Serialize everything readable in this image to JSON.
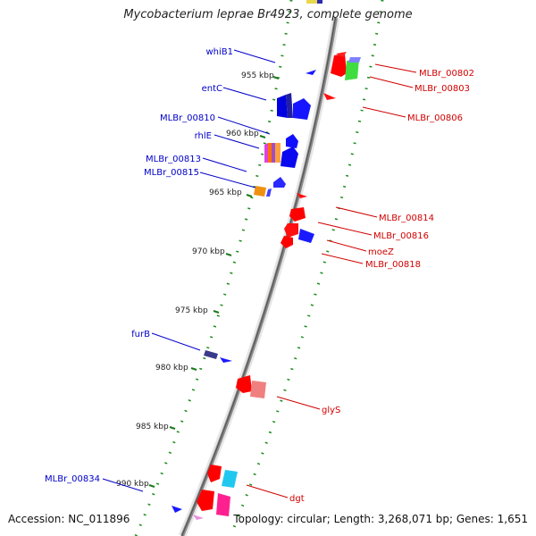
{
  "title": "Mycobacterium leprae Br4923, complete genome",
  "footer": {
    "accession": "Accession: NC_011896",
    "topology": "Topology: circular; Length: 3,268,071 bp; Genes: 1,651"
  },
  "ticks": [
    "955 kbp",
    "960 kbp",
    "965 kbp",
    "970 kbp",
    "975 kbp",
    "980 kbp",
    "985 kbp",
    "990 kbp"
  ],
  "labels": {
    "whiB1": "whiB1",
    "entC": "entC",
    "MLBr_00810": "MLBr_00810",
    "rhlE": "rhlE",
    "MLBr_00813": "MLBr_00813",
    "MLBr_00815": "MLBr_00815",
    "furB": "furB",
    "MLBr_00834": "MLBr_00834",
    "MLBr_00802": "MLBr_00802",
    "MLBr_00803": "MLBr_00803",
    "MLBr_00806": "MLBr_00806",
    "MLBr_00814": "MLBr_00814",
    "MLBr_00816": "MLBr_00816",
    "moeZ": "moeZ",
    "MLBr_00818": "MLBr_00818",
    "glyS": "glyS",
    "dgt": "dgt"
  },
  "colors": {
    "backbone": "#7a7a7a",
    "dots": "#1a8c1a",
    "forward_label": "#0000c8",
    "reverse_label": "#d00000"
  }
}
